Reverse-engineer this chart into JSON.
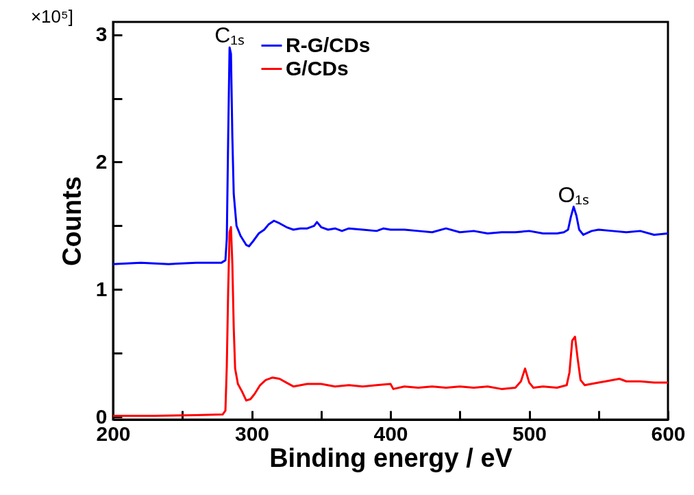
{
  "chart_data": {
    "type": "line",
    "xlabel": "Binding energy / eV",
    "ylabel": "Counts",
    "annotations": [
      "×10⁵]",
      {
        "text": "C₁ₛ",
        "x": 284,
        "y": 2.9
      },
      {
        "text": "O₁ₛ",
        "x": 532,
        "y": 1.65
      }
    ],
    "xlim": [
      200,
      600
    ],
    "ylim": [
      -0.02,
      3.1
    ],
    "xticks": [
      200,
      {
        "value": 250,
        "label": null
      },
      300,
      {
        "value": 350,
        "label": null
      },
      400,
      {
        "value": 450,
        "label": null
      },
      500,
      {
        "value": 550,
        "label": null
      },
      600
    ],
    "yticks": [
      0,
      {
        "value": 0.5,
        "label": null
      },
      1,
      {
        "value": 1.5,
        "label": null
      },
      2,
      {
        "value": 2.5,
        "label": null
      },
      3
    ],
    "grid": false,
    "legend": "top",
    "marker": "none",
    "line_style": "solid",
    "series": [
      {
        "name": "R-G/CDs",
        "color": "#0000ff",
        "x": [
          200,
          220,
          240,
          260,
          278,
          281,
          282,
          283,
          284,
          285,
          286,
          287,
          289,
          292,
          296,
          298,
          301,
          305,
          309,
          312,
          316,
          320,
          325,
          330,
          335,
          340,
          345,
          347,
          350,
          355,
          360,
          365,
          370,
          380,
          390,
          395,
          400,
          410,
          420,
          430,
          440,
          450,
          460,
          470,
          480,
          490,
          500,
          510,
          520,
          525,
          528,
          530,
          532,
          534,
          536,
          539,
          545,
          550,
          560,
          570,
          580,
          590,
          600
        ],
        "values": [
          1.2,
          1.21,
          1.2,
          1.21,
          1.21,
          1.23,
          1.4,
          2.2,
          2.9,
          2.85,
          2.2,
          1.75,
          1.5,
          1.42,
          1.35,
          1.34,
          1.38,
          1.44,
          1.47,
          1.51,
          1.54,
          1.52,
          1.49,
          1.47,
          1.48,
          1.48,
          1.5,
          1.53,
          1.49,
          1.47,
          1.48,
          1.46,
          1.48,
          1.47,
          1.46,
          1.48,
          1.47,
          1.47,
          1.46,
          1.45,
          1.48,
          1.45,
          1.46,
          1.44,
          1.45,
          1.45,
          1.46,
          1.44,
          1.44,
          1.45,
          1.47,
          1.57,
          1.65,
          1.58,
          1.47,
          1.43,
          1.46,
          1.47,
          1.46,
          1.45,
          1.46,
          1.43,
          1.44
        ]
      },
      {
        "name": "G/CDs",
        "color": "#ff0000",
        "x": [
          200,
          230,
          260,
          279,
          281,
          282,
          283,
          284,
          285,
          286,
          287,
          288,
          290,
          293,
          296,
          299,
          302,
          306,
          310,
          315,
          320,
          325,
          330,
          340,
          350,
          360,
          370,
          380,
          390,
          400,
          402,
          410,
          420,
          430,
          440,
          450,
          460,
          470,
          480,
          490,
          494,
          497,
          500,
          503,
          510,
          520,
          527,
          529,
          531,
          533,
          535,
          537,
          540,
          550,
          555,
          565,
          570,
          580,
          590,
          600
        ],
        "values": [
          0.01,
          0.01,
          0.015,
          0.02,
          0.05,
          0.4,
          1.0,
          1.45,
          1.49,
          1.2,
          0.7,
          0.38,
          0.26,
          0.2,
          0.13,
          0.14,
          0.18,
          0.25,
          0.29,
          0.31,
          0.3,
          0.27,
          0.24,
          0.26,
          0.26,
          0.24,
          0.25,
          0.24,
          0.25,
          0.26,
          0.22,
          0.24,
          0.23,
          0.24,
          0.23,
          0.24,
          0.23,
          0.24,
          0.22,
          0.23,
          0.28,
          0.38,
          0.27,
          0.23,
          0.24,
          0.23,
          0.25,
          0.35,
          0.6,
          0.63,
          0.45,
          0.29,
          0.25,
          0.27,
          0.28,
          0.3,
          0.28,
          0.28,
          0.27,
          0.27
        ]
      }
    ]
  }
}
